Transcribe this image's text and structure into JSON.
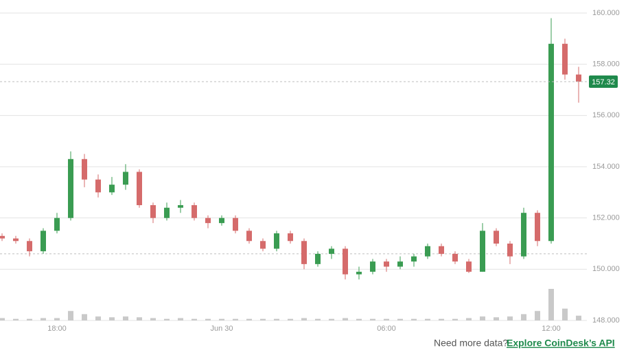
{
  "chart_data": {
    "type": "candlestick",
    "categories": [
      null,
      null,
      null,
      null,
      "18:00",
      null,
      null,
      null,
      null,
      null,
      null,
      null,
      null,
      null,
      null,
      null,
      "Jun 30",
      null,
      null,
      null,
      null,
      null,
      null,
      null,
      null,
      null,
      null,
      null,
      "06:00",
      null,
      null,
      null,
      null,
      null,
      null,
      null,
      null,
      null,
      null,
      null,
      "12:00",
      null,
      null
    ],
    "open": [
      151.3,
      151.2,
      151.1,
      150.7,
      151.5,
      152.0,
      154.3,
      153.5,
      153.0,
      153.3,
      153.8,
      152.5,
      152.0,
      152.4,
      152.5,
      152.0,
      151.8,
      152.0,
      151.5,
      151.1,
      150.8,
      151.4,
      151.1,
      150.2,
      150.6,
      150.8,
      149.8,
      149.9,
      150.3,
      150.1,
      150.3,
      150.5,
      150.9,
      150.6,
      150.3,
      149.9,
      151.5,
      151.0,
      150.5,
      152.2,
      151.1,
      158.8,
      157.6
    ],
    "high": [
      151.4,
      151.3,
      151.2,
      151.6,
      152.2,
      154.6,
      154.5,
      153.7,
      153.6,
      154.1,
      153.9,
      152.6,
      152.6,
      152.7,
      152.6,
      152.1,
      152.1,
      152.1,
      151.6,
      151.2,
      151.5,
      151.5,
      151.2,
      150.7,
      150.9,
      150.9,
      150.1,
      150.4,
      150.4,
      150.5,
      150.6,
      151.0,
      151.0,
      150.7,
      150.4,
      151.8,
      151.6,
      151.1,
      152.4,
      152.3,
      159.8,
      159.0,
      157.9
    ],
    "low": [
      151.1,
      151.0,
      150.5,
      150.6,
      151.4,
      151.9,
      153.2,
      152.8,
      152.9,
      153.1,
      152.4,
      151.8,
      151.9,
      152.2,
      151.9,
      151.6,
      151.7,
      151.4,
      151.0,
      150.7,
      150.7,
      151.0,
      150.0,
      150.1,
      150.4,
      149.6,
      149.6,
      149.8,
      149.9,
      150.0,
      150.1,
      150.4,
      150.5,
      150.2,
      149.85,
      149.9,
      150.9,
      150.2,
      150.4,
      150.9,
      151.0,
      157.4,
      156.5
    ],
    "close": [
      151.2,
      151.1,
      150.7,
      151.5,
      152.0,
      154.3,
      153.5,
      153.0,
      153.3,
      153.8,
      152.5,
      152.0,
      152.4,
      152.5,
      152.0,
      151.8,
      152.0,
      151.5,
      151.1,
      150.8,
      151.4,
      151.1,
      150.2,
      150.6,
      150.8,
      149.8,
      149.9,
      150.3,
      150.1,
      150.3,
      150.5,
      150.9,
      150.6,
      150.3,
      149.9,
      151.5,
      151.0,
      150.5,
      152.2,
      151.1,
      158.8,
      157.6,
      157.32
    ],
    "volume": [
      3,
      2,
      2,
      3,
      3,
      12,
      8,
      5,
      4,
      5,
      4,
      3,
      2,
      3,
      2,
      2,
      2,
      2,
      2,
      2,
      2,
      2,
      3,
      2,
      2,
      3,
      2,
      2,
      2,
      2,
      2,
      2,
      2,
      2,
      3,
      5,
      4,
      5,
      8,
      12,
      40,
      15,
      6
    ],
    "up_color": "#3a9c52",
    "down_color": "#d56b6b",
    "volume_color": "#c9c9c9",
    "price_tag_color": "#1f8a4c",
    "reference_line": 150.6,
    "ylim": [
      148,
      160
    ],
    "yticks": [
      {
        "value": 148,
        "label": "148.000"
      },
      {
        "value": 150,
        "label": "150.000"
      },
      {
        "value": 152,
        "label": "152.000"
      },
      {
        "value": 154,
        "label": "154.000"
      },
      {
        "value": 156,
        "label": "156.000"
      },
      {
        "value": 158,
        "label": "158.000"
      },
      {
        "value": 160,
        "label": "160.000"
      }
    ],
    "grid": true
  },
  "footer": {
    "prompt": "Need more data?",
    "link": "Explore CoinDesk’s API"
  }
}
